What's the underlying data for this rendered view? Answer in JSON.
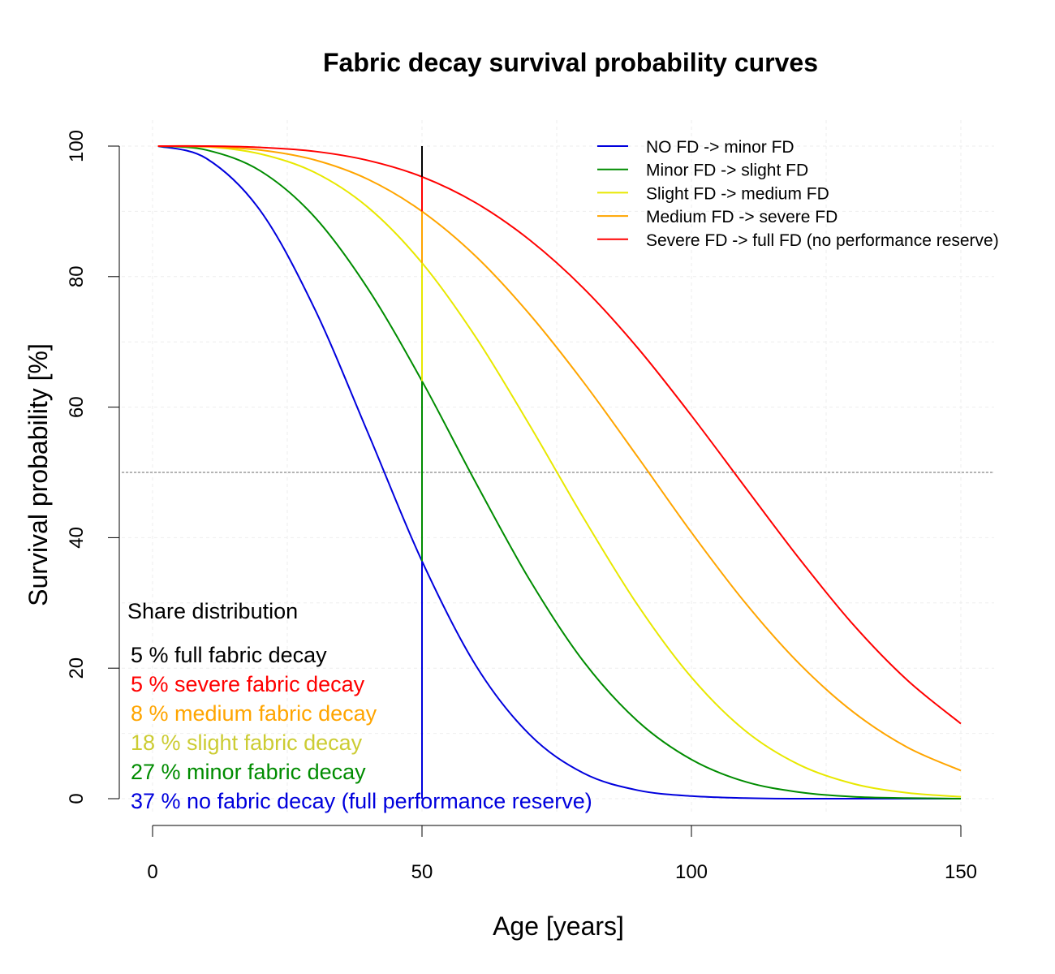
{
  "chart_data": {
    "type": "line",
    "title": "Fabric decay survival probability curves",
    "xlabel": "Age [years]",
    "ylabel": "Survival probability [%]",
    "xlim": [
      0,
      150
    ],
    "ylim": [
      0,
      100
    ],
    "xticks": [
      0,
      50,
      100,
      150
    ],
    "yticks": [
      0,
      20,
      40,
      60,
      80,
      100
    ],
    "grid": true,
    "legend_position": "top-right",
    "reference_lines": {
      "horizontal_y": 50,
      "vertical_x": 50
    },
    "x": [
      1,
      10,
      20,
      30,
      40,
      50,
      60,
      70,
      80,
      90,
      100,
      110,
      120,
      130,
      140,
      150
    ],
    "series": [
      {
        "name": "NO FD  -> minor FD",
        "color": "#0000dd",
        "values": [
          100,
          98.1,
          90.1,
          75.2,
          56.0,
          36.4,
          20.4,
          9.8,
          3.9,
          1.3,
          0.4,
          0.1,
          0.0,
          0.0,
          0.0,
          0.0
        ]
      },
      {
        "name": "Minor FD -> slight FD",
        "color": "#008c00",
        "values": [
          100,
          99.4,
          96.2,
          89.2,
          78.1,
          64.0,
          48.4,
          33.5,
          21.0,
          11.9,
          6.0,
          2.6,
          1.0,
          0.3,
          0.1,
          0.0
        ]
      },
      {
        "name": "Slight FD -> medium FD",
        "color": "#e8e800",
        "values": [
          100,
          99.9,
          98.8,
          96.0,
          90.6,
          82.1,
          70.7,
          57.2,
          43.0,
          29.7,
          18.6,
          10.4,
          5.2,
          2.3,
          0.9,
          0.3
        ]
      },
      {
        "name": "Medium FD -> severe FD",
        "color": "#ffa500",
        "values": [
          100,
          99.9,
          99.4,
          97.9,
          94.9,
          90.0,
          83.1,
          74.2,
          63.8,
          52.4,
          40.8,
          30.0,
          20.7,
          13.3,
          7.9,
          4.3
        ]
      },
      {
        "name": "Severe FD -> full FD (no performance reserve)",
        "color": "#ff0000",
        "values": [
          100,
          100,
          99.8,
          99.2,
          97.8,
          95.3,
          91.3,
          85.6,
          78.2,
          69.1,
          58.7,
          47.7,
          36.8,
          26.7,
          18.2,
          11.5
        ]
      }
    ],
    "annotations": {
      "heading": "Share distribution",
      "items": [
        {
          "text": "5 % full fabric decay",
          "color": "#000000"
        },
        {
          "text": "5 % severe fabric decay",
          "color": "#ff0000"
        },
        {
          "text": "8 % medium fabric decay",
          "color": "#ffa500"
        },
        {
          "text": "18 % slight fabric decay",
          "color": "#cccc33"
        },
        {
          "text": "27 % minor fabric decay",
          "color": "#008c00"
        },
        {
          "text": "37 % no fabric decay (full performance reserve)",
          "color": "#0000dd"
        }
      ]
    }
  }
}
